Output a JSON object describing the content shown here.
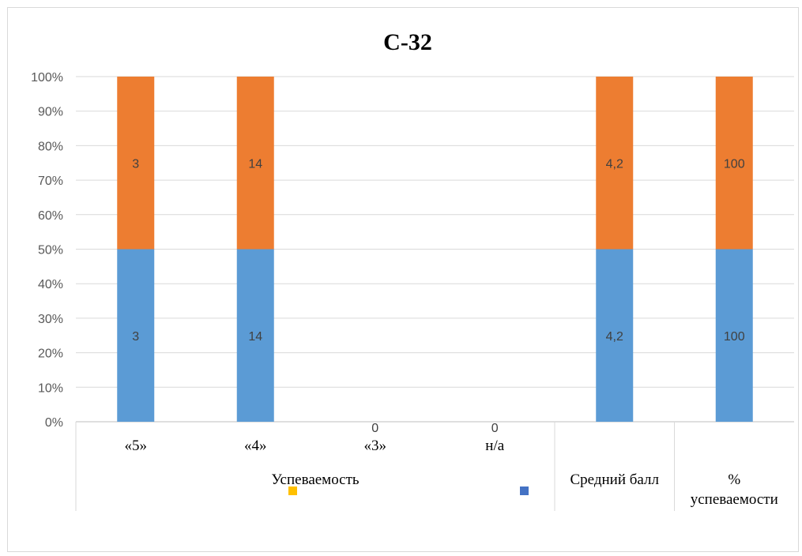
{
  "chart_data": {
    "type": "bar",
    "stacked": "percent",
    "title": "С-32",
    "categories": [
      "«5»",
      "«4»",
      "«3»",
      "н/а",
      "Средний балл",
      "% успеваемости"
    ],
    "category_groups": [
      {
        "label": "Успеваемость",
        "categories": [
          "«5»",
          "«4»",
          "«3»",
          "н/а"
        ]
      }
    ],
    "series": [
      {
        "values": [
          3,
          14,
          0,
          0,
          4.2,
          100
        ],
        "color": "#5b9bd5"
      },
      {
        "values": [
          3,
          14,
          0,
          0,
          4.2,
          100
        ],
        "color": "#ed7d31"
      }
    ],
    "data_labels": [
      [
        "3",
        "14",
        "0",
        "0",
        "4,2",
        "100"
      ],
      [
        "3",
        "14",
        "",
        "",
        "4,2",
        "100"
      ]
    ],
    "yticks": [
      "0%",
      "10%",
      "20%",
      "30%",
      "40%",
      "50%",
      "60%",
      "70%",
      "80%",
      "90%",
      "100%"
    ],
    "ylim": [
      0,
      100
    ],
    "grid": true,
    "legend_marker_colors": [
      "#ffc000",
      "#4472c4"
    ]
  }
}
